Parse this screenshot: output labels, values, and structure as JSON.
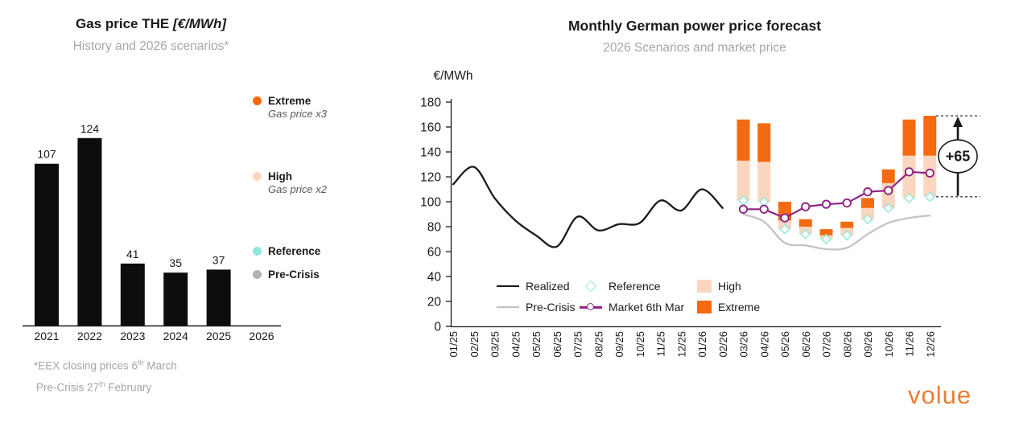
{
  "brand": {
    "logo_text": "volue",
    "color": "#E87E38"
  },
  "left_chart": {
    "title_main": "Gas price THE ",
    "title_unit": "[€/MWh]",
    "subtitle": "History and 2026 scenarios*",
    "legend": [
      {
        "label": "Extreme",
        "note": "Gas price x3",
        "color": "#F36A10"
      },
      {
        "label": "High",
        "note": "Gas price x2",
        "color": "#FAD6BE"
      },
      {
        "label": "Reference",
        "note": "",
        "color": "#8EE6DC"
      },
      {
        "label": "Pre-Crisis",
        "note": "",
        "color": "#B3B3B3"
      }
    ],
    "footnote1": {
      "pre": "*EEX closing prices 6",
      "sup": "th",
      "post": " March"
    },
    "footnote2": {
      "pre": "Pre-Crisis 27",
      "sup": "th",
      "post": " February"
    }
  },
  "right_chart": {
    "title": "Monthly German power price forecast",
    "subtitle": "2026 Scenarios and market price",
    "legend": {
      "realized": "Realized",
      "precrisis": "Pre-Crisis",
      "reference": "Reference",
      "market": "Market  6th Mar",
      "high": "High",
      "extreme": "Extreme"
    }
  },
  "chart_data": [
    {
      "id": "gas-price-the",
      "type": "bar",
      "title": "Gas price THE [€/MWh]",
      "subtitle": "History and 2026 scenarios*",
      "categories": [
        "2021",
        "2022",
        "2023",
        "2024",
        "2025",
        "2026"
      ],
      "values": [
        107,
        124,
        41,
        35,
        37,
        null
      ],
      "bar_color": "#0d0d0d",
      "ylim": [
        0,
        151
      ],
      "scenario_legend": [
        {
          "name": "Extreme",
          "note": "Gas price x3",
          "color": "#F36A10"
        },
        {
          "name": "High",
          "note": "Gas price x2",
          "color": "#FAD6BE"
        },
        {
          "name": "Reference",
          "note": "",
          "color": "#8EE6DC"
        },
        {
          "name": "Pre-Crisis",
          "note": "",
          "color": "#B3B3B3"
        }
      ]
    },
    {
      "id": "german-power-forecast",
      "type": "combo",
      "title": "Monthly German power price forecast",
      "subtitle": "2026 Scenarios and market price",
      "ylabel": "€/MWh",
      "ylim": [
        0,
        180
      ],
      "ytick_step": 20,
      "categories": [
        "01/25",
        "02/25",
        "03/25",
        "04/25",
        "05/25",
        "06/25",
        "07/25",
        "08/25",
        "09/25",
        "10/25",
        "11/25",
        "12/25",
        "01/26",
        "02/26",
        "03/26",
        "04/26",
        "05/26",
        "06/26",
        "07/26",
        "08/26",
        "09/26",
        "10/26",
        "11/26",
        "12/26"
      ],
      "series": [
        {
          "name": "Realized",
          "type": "line",
          "color": "#1A1A1A",
          "start_index": 0,
          "values": [
            114,
            128,
            103,
            85,
            73,
            64,
            88,
            77,
            82,
            83,
            101,
            93,
            110,
            95
          ]
        },
        {
          "name": "Pre-Crisis",
          "type": "line",
          "color": "#C3C3C3",
          "start_index": 14,
          "values": [
            90,
            84,
            67,
            65,
            62,
            63,
            74,
            83,
            87,
            89
          ]
        },
        {
          "name": "Reference",
          "type": "diamond",
          "color": "#9BE8DD",
          "start_index": 14,
          "values": [
            101,
            100,
            78,
            74,
            70,
            73,
            86,
            95,
            103,
            104
          ]
        },
        {
          "name": "High",
          "type": "floating-bar",
          "color": "#FAD6BE",
          "start_index": 14,
          "from": [
            101,
            100,
            78,
            74,
            70,
            73,
            86,
            95,
            103,
            104
          ],
          "to": [
            133,
            132,
            85,
            80,
            73,
            79,
            95,
            115,
            137,
            137
          ]
        },
        {
          "name": "Extreme",
          "type": "floating-bar",
          "color": "#F36A10",
          "start_index": 14,
          "from": [
            133,
            132,
            85,
            80,
            73,
            79,
            95,
            115,
            137,
            137
          ],
          "to": [
            166,
            163,
            100,
            86,
            78,
            84,
            103,
            126,
            166,
            169
          ]
        },
        {
          "name": "Market 6th Mar",
          "type": "line-markers",
          "color": "#8E2483",
          "start_index": 14,
          "values": [
            94,
            94,
            87,
            96,
            98,
            99,
            108,
            109,
            124,
            123
          ]
        }
      ],
      "annotation": {
        "label": "+65",
        "value_from": 104,
        "value_to": 169
      }
    }
  ]
}
